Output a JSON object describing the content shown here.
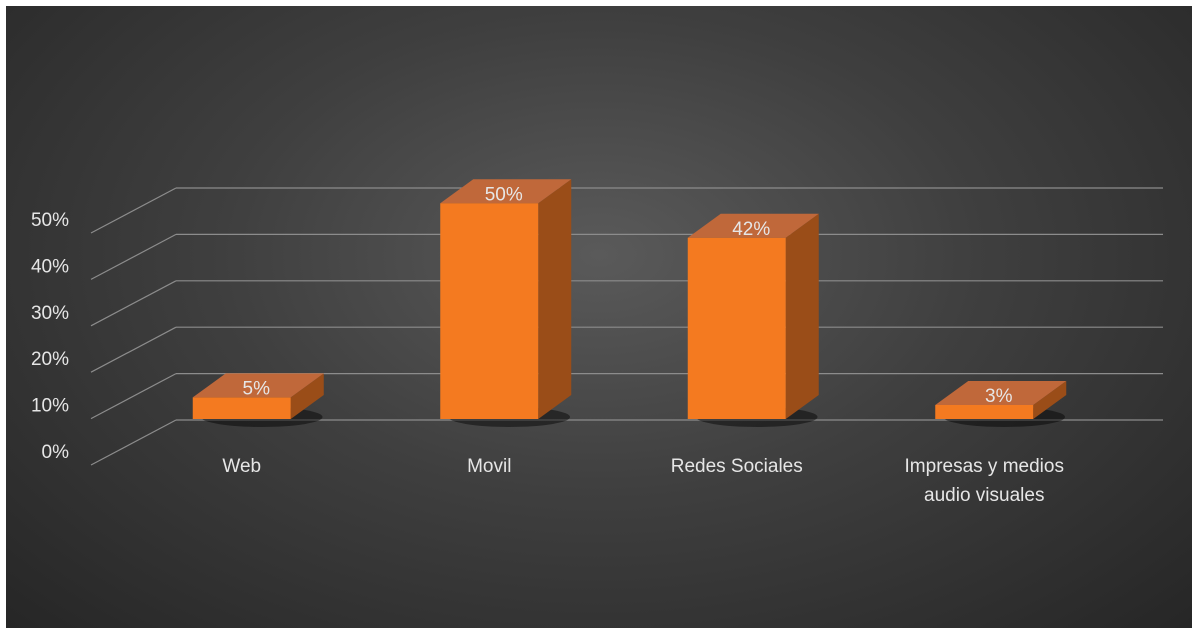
{
  "chart_data": {
    "type": "bar",
    "categories": [
      "Web",
      "Movil",
      "Redes Sociales",
      "Impresas y medios audio visuales"
    ],
    "category_lines": [
      [
        "Web"
      ],
      [
        "Movil"
      ],
      [
        "Redes Sociales"
      ],
      [
        "Impresas y medios",
        "audio visuales"
      ]
    ],
    "values": [
      0.05,
      0.5,
      0.42,
      0.03
    ],
    "data_labels": [
      "5%",
      "50%",
      "42%",
      "3%"
    ],
    "ylim": [
      0,
      0.5
    ],
    "yticks": [
      0,
      0.1,
      0.2,
      0.3,
      0.4,
      0.5
    ],
    "ytick_labels": [
      "0%",
      "10%",
      "20%",
      "30%",
      "40%",
      "50%"
    ],
    "grid": true,
    "style": "3d-column",
    "colors": {
      "bar_front": "#f47a20",
      "bar_top": "#c0683a",
      "bar_side": "#9a4d18",
      "gridline": "#8c8c8c",
      "text": "#e6e6e6"
    }
  }
}
